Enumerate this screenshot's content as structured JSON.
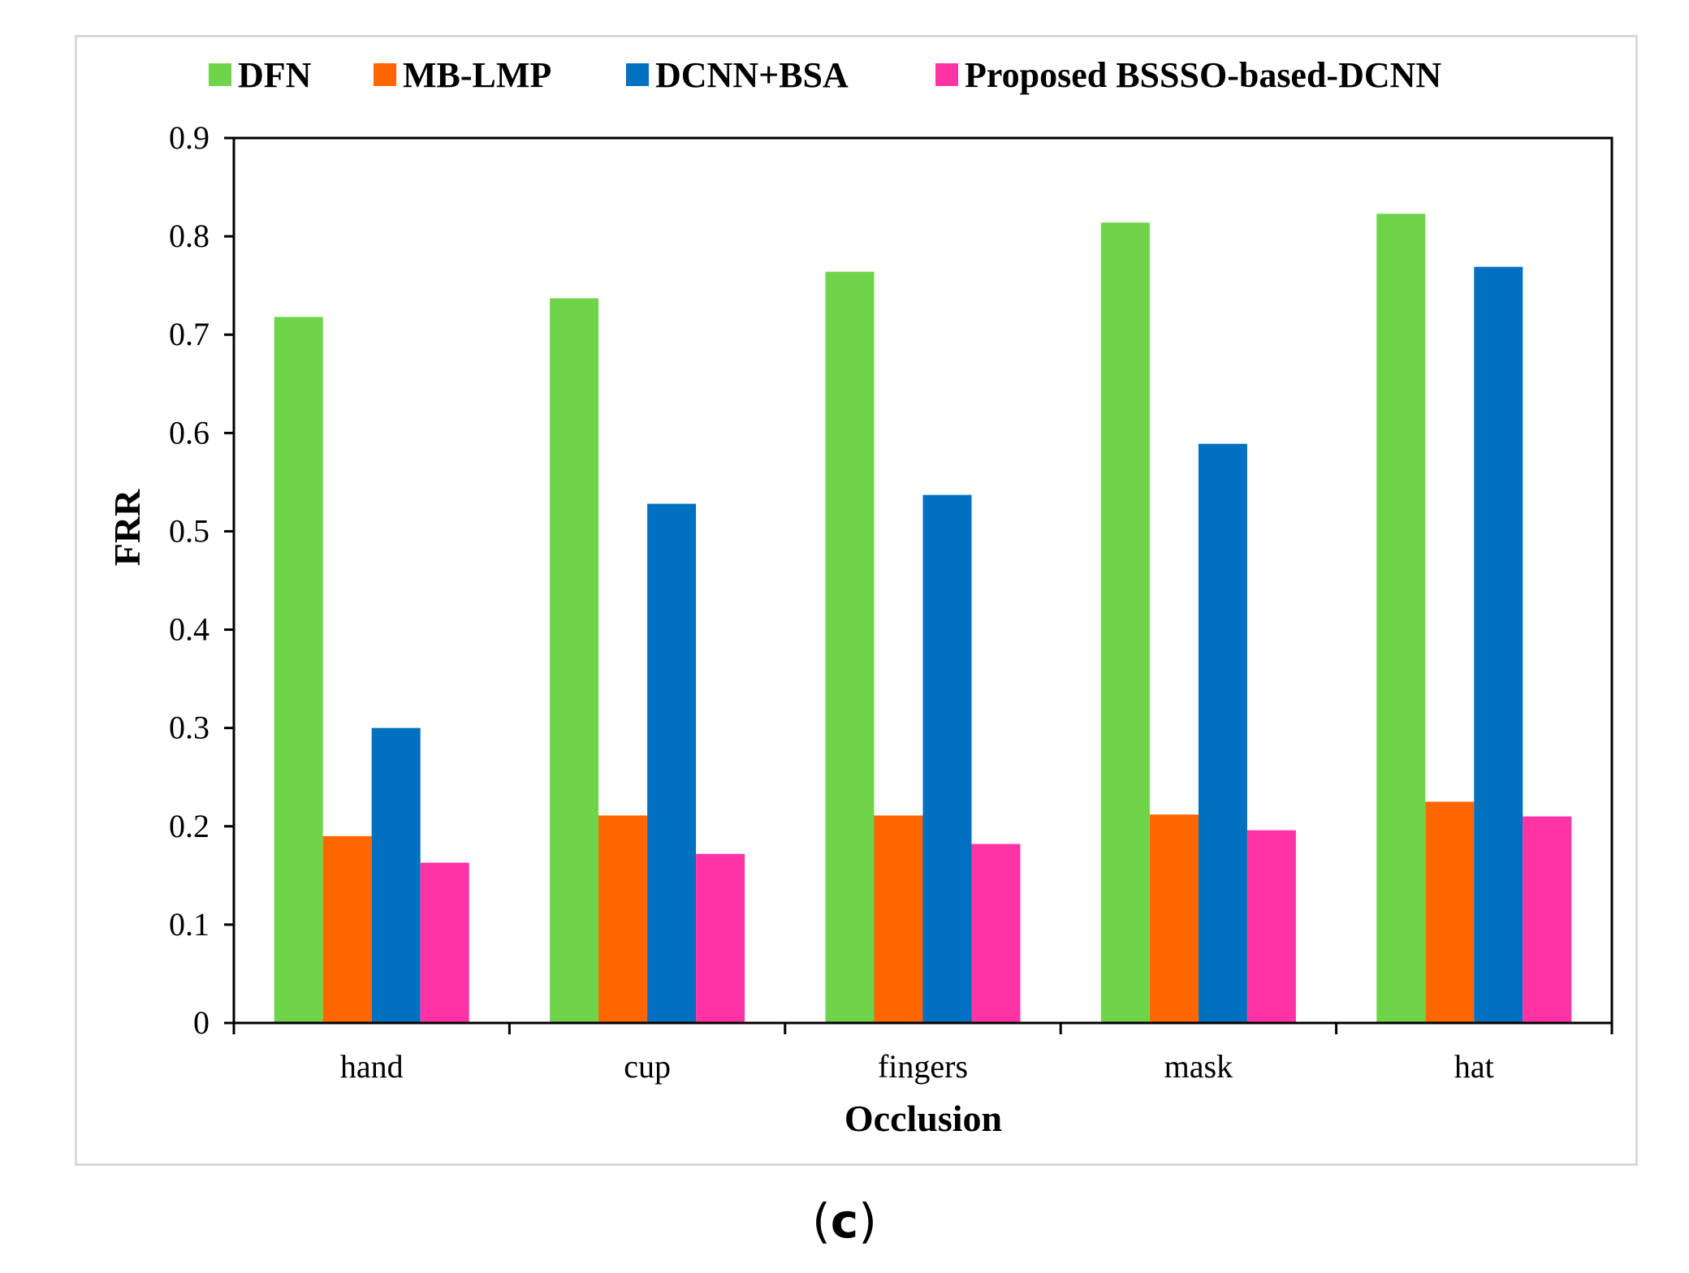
{
  "chart_data": {
    "type": "bar",
    "title": "",
    "xlabel": "Occlusion",
    "ylabel": "FRR",
    "ylim": [
      0,
      0.9
    ],
    "yticks": [
      "0",
      "0.1",
      "0.2",
      "0.3",
      "0.4",
      "0.5",
      "0.6",
      "0.7",
      "0.8",
      "0.9"
    ],
    "categories": [
      "hand",
      "cup",
      "fingers",
      "mask",
      "hat"
    ],
    "legend_position": "top",
    "series": [
      {
        "name": "DFN",
        "color": "#70d44b",
        "values": [
          0.718,
          0.737,
          0.764,
          0.814,
          0.823
        ]
      },
      {
        "name": "MB-LMP",
        "color": "#ff6600",
        "values": [
          0.19,
          0.211,
          0.211,
          0.212,
          0.225
        ]
      },
      {
        "name": "DCNN+BSA",
        "color": "#0070c0",
        "values": [
          0.3,
          0.528,
          0.537,
          0.589,
          0.769
        ]
      },
      {
        "name": "Proposed BSSSO-based-DCNN",
        "color": "#ff33a6",
        "values": [
          0.163,
          0.172,
          0.182,
          0.196,
          0.21
        ]
      }
    ],
    "grid": false
  },
  "caption": {
    "open": "(",
    "letter": "c",
    "close": ")"
  }
}
